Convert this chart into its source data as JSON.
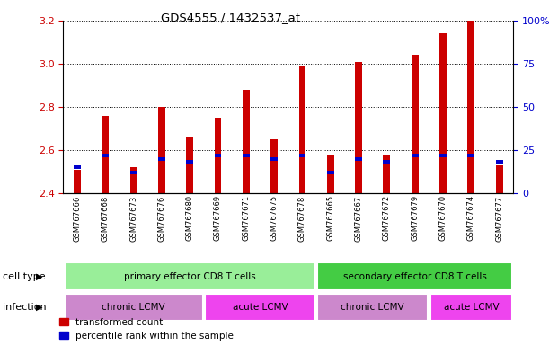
{
  "title": "GDS4555 / 1432537_at",
  "samples": [
    "GSM767666",
    "GSM767668",
    "GSM767673",
    "GSM767676",
    "GSM767680",
    "GSM767669",
    "GSM767671",
    "GSM767675",
    "GSM767678",
    "GSM767665",
    "GSM767667",
    "GSM767672",
    "GSM767679",
    "GSM767670",
    "GSM767674",
    "GSM767677"
  ],
  "transformed_count": [
    2.51,
    2.76,
    2.52,
    2.8,
    2.66,
    2.75,
    2.88,
    2.65,
    2.99,
    2.58,
    3.01,
    2.58,
    3.04,
    3.14,
    3.2,
    2.53
  ],
  "percentile_rank_pct": [
    15,
    22,
    12,
    20,
    18,
    22,
    22,
    20,
    22,
    12,
    20,
    18,
    22,
    22,
    22,
    18
  ],
  "ymin": 2.4,
  "ymax": 3.2,
  "yticks": [
    2.4,
    2.6,
    2.8,
    3.0,
    3.2
  ],
  "right_yticks_pct": [
    0,
    25,
    50,
    75,
    100
  ],
  "right_yticklabels": [
    "0",
    "25",
    "50",
    "75",
    "100%"
  ],
  "bar_color_red": "#cc0000",
  "bar_color_blue": "#0000cc",
  "cell_type_groups": [
    {
      "label": "primary effector CD8 T cells",
      "start": 0,
      "end": 9,
      "color": "#99ee99"
    },
    {
      "label": "secondary effector CD8 T cells",
      "start": 9,
      "end": 16,
      "color": "#44cc44"
    }
  ],
  "infection_groups": [
    {
      "label": "chronic LCMV",
      "start": 0,
      "end": 5,
      "color": "#cc88cc"
    },
    {
      "label": "acute LCMV",
      "start": 5,
      "end": 9,
      "color": "#ee44ee"
    },
    {
      "label": "chronic LCMV",
      "start": 9,
      "end": 13,
      "color": "#cc88cc"
    },
    {
      "label": "acute LCMV",
      "start": 13,
      "end": 16,
      "color": "#ee44ee"
    }
  ],
  "legend_red_label": "transformed count",
  "legend_blue_label": "percentile rank within the sample",
  "cell_type_label": "cell type",
  "infection_label": "infection",
  "bar_width": 0.25,
  "background_color": "#ffffff",
  "plot_bg_color": "#ffffff",
  "tick_label_color_left": "#cc0000",
  "tick_label_color_right": "#0000cc"
}
